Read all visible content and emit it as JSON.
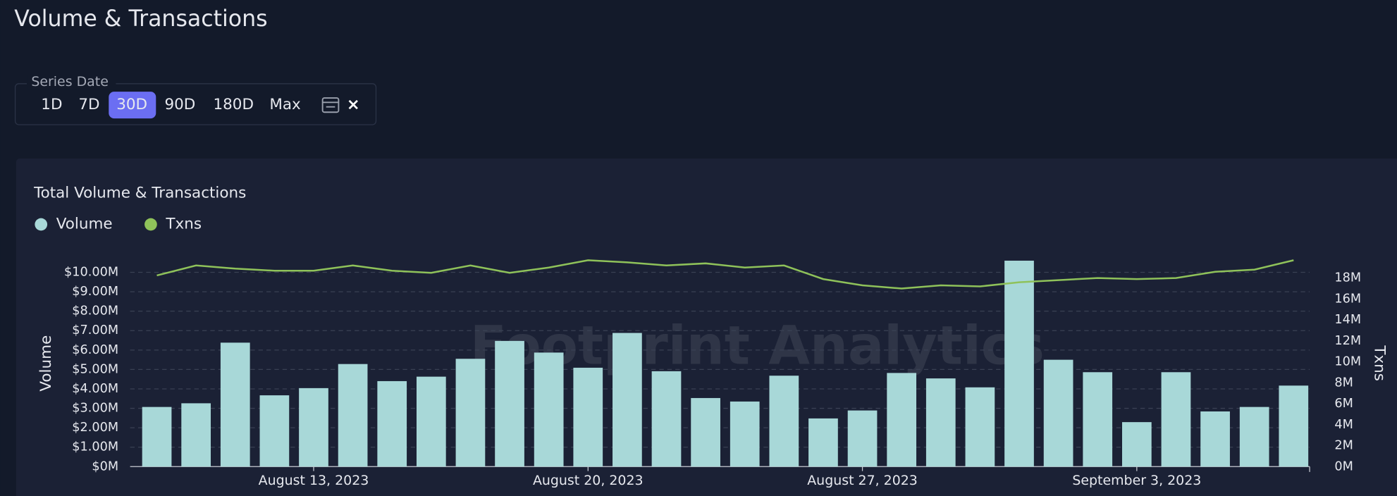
{
  "header": {
    "title": "Volume & Transactions"
  },
  "filter": {
    "label": "Series Date",
    "options": [
      "1D",
      "7D",
      "30D",
      "90D",
      "180D",
      "Max"
    ],
    "selected_option": 2
  },
  "watermark": "Footprint Analytics",
  "chart_data": {
    "type": "bar_line",
    "title": "Total Volume & Transactions",
    "categories": [
      null,
      null,
      null,
      null,
      "August 13, 2023",
      null,
      null,
      null,
      null,
      null,
      null,
      "August 20, 2023",
      null,
      null,
      null,
      null,
      null,
      null,
      "August 27, 2023",
      null,
      null,
      null,
      null,
      null,
      null,
      "September 3, 2023",
      null,
      null,
      null,
      null
    ],
    "series": [
      {
        "name": "Volume",
        "color": "#a8d8d8",
        "values": [
          3.07,
          3.26,
          6.38,
          3.67,
          4.04,
          5.28,
          4.4,
          4.63,
          5.55,
          6.47,
          5.87,
          5.09,
          6.88,
          4.91,
          3.53,
          3.35,
          4.68,
          2.48,
          2.89,
          4.82,
          4.54,
          4.08,
          10.6,
          5.5,
          4.86,
          2.29,
          4.86,
          2.84,
          3.07,
          4.17
        ]
      },
      {
        "name": "Txns",
        "color": "#8fc25a",
        "axis": "y2",
        "values": [
          18.25,
          19.2,
          18.9,
          18.7,
          18.7,
          19.2,
          18.7,
          18.5,
          19.2,
          18.5,
          19.0,
          19.7,
          19.5,
          19.2,
          19.4,
          19.0,
          19.2,
          17.9,
          17.3,
          17.0,
          17.3,
          17.2,
          17.6,
          17.8,
          18.0,
          17.9,
          18.0,
          18.6,
          18.8,
          19.7
        ]
      }
    ],
    "ylabel": "Volume",
    "y2label": "Txns",
    "ylim": [
      0,
      11
    ],
    "y2lim": [
      0,
      20.4
    ],
    "yticks": [
      {
        "value": 0,
        "label": "$0M"
      },
      {
        "value": 1,
        "label": "$1.00M"
      },
      {
        "value": 2,
        "label": "$2.00M"
      },
      {
        "value": 3,
        "label": "$3.00M"
      },
      {
        "value": 4,
        "label": "$4.00M"
      },
      {
        "value": 5,
        "label": "$5.00M"
      },
      {
        "value": 6,
        "label": "$6.00M"
      },
      {
        "value": 7,
        "label": "$7.00M"
      },
      {
        "value": 8,
        "label": "$8.00M"
      },
      {
        "value": 9,
        "label": "$9.00M"
      },
      {
        "value": 10,
        "label": "$10.00M"
      }
    ],
    "y2ticks": [
      {
        "value": 0,
        "label": "0M"
      },
      {
        "value": 2,
        "label": "2M"
      },
      {
        "value": 4,
        "label": "4M"
      },
      {
        "value": 6,
        "label": "6M"
      },
      {
        "value": 8,
        "label": "8M"
      },
      {
        "value": 10,
        "label": "10M"
      },
      {
        "value": 12,
        "label": "12M"
      },
      {
        "value": 14,
        "label": "14M"
      },
      {
        "value": 16,
        "label": "16M"
      },
      {
        "value": 18,
        "label": "18M"
      }
    ],
    "grid": true
  }
}
